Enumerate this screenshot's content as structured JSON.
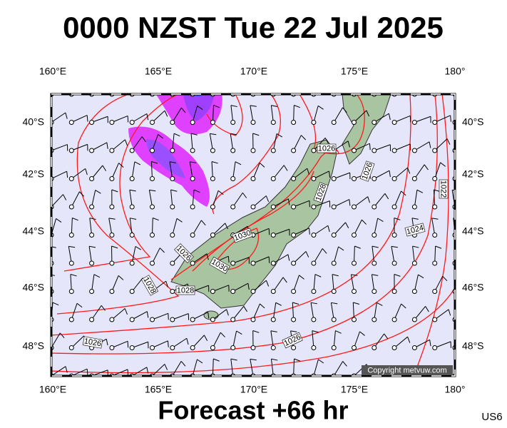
{
  "title": "0000 NZST Tue 22 Jul 2025",
  "top_axis": [
    "160°E",
    "165°E",
    "170°E",
    "175°E",
    "180°"
  ],
  "bottom_axis": [
    "160°E",
    "165°E",
    "170°E",
    "175°E",
    "180°"
  ],
  "left_axis": [
    "40°S",
    "42°S",
    "44°S",
    "46°S",
    "48°S"
  ],
  "right_axis": [
    "40°S",
    "42°S",
    "44°S",
    "46°S",
    "48°S"
  ],
  "isobar_labels": [
    "1026",
    "1028",
    "1026",
    "1022",
    "1024",
    "1030",
    "1026",
    "1028",
    "1028",
    "1030",
    "1026",
    "1026"
  ],
  "copyright": "Copyright metvuw.com",
  "forecast": "Forecast +66 hr",
  "code": "US6"
}
